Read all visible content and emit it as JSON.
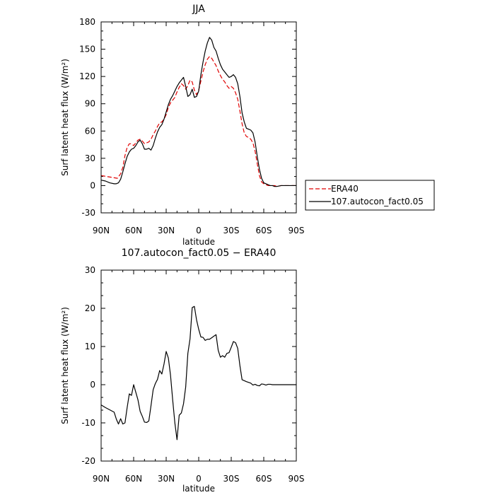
{
  "chart_data": [
    {
      "type": "line",
      "title": "JJA",
      "xlabel": "latitude",
      "ylabel": "Surf latent heat flux (W/m²)",
      "xlim": [
        -90,
        90
      ],
      "ylim": [
        -30,
        180
      ],
      "x_ticks": [
        -90,
        -60,
        -30,
        0,
        30,
        60,
        90
      ],
      "x_tick_labels": [
        "90N",
        "60N",
        "30N",
        "0",
        "30S",
        "60S",
        "90S"
      ],
      "y_ticks": [
        -30,
        0,
        30,
        60,
        90,
        120,
        150,
        180
      ],
      "y_tick_labels": [
        "-30",
        "0",
        "30",
        "60",
        "90",
        "120",
        "150",
        "180"
      ],
      "legend_position": "right, outside plot",
      "series": [
        {
          "name": "ERA40",
          "color": "#e00000",
          "dash": "dashed",
          "points": [
            [
              -90,
              11
            ],
            [
              -85,
              10
            ],
            [
              -80,
              9
            ],
            [
              -75,
              8
            ],
            [
              -72,
              13
            ],
            [
              -70,
              20
            ],
            [
              -68,
              33
            ],
            [
              -66,
              42
            ],
            [
              -64,
              46
            ],
            [
              -62,
              46
            ],
            [
              -60,
              44
            ],
            [
              -58,
              47
            ],
            [
              -56,
              50
            ],
            [
              -54,
              51
            ],
            [
              -52,
              49
            ],
            [
              -50,
              46
            ],
            [
              -48,
              47
            ],
            [
              -46,
              48
            ],
            [
              -44,
              51
            ],
            [
              -42,
              56
            ],
            [
              -40,
              60
            ],
            [
              -38,
              65
            ],
            [
              -36,
              69
            ],
            [
              -34,
              70
            ],
            [
              -32,
              73
            ],
            [
              -30,
              78
            ],
            [
              -28,
              86
            ],
            [
              -26,
              91
            ],
            [
              -24,
              94
            ],
            [
              -22,
              97
            ],
            [
              -20,
              103
            ],
            [
              -18,
              108
            ],
            [
              -16,
              112
            ],
            [
              -14,
              110
            ],
            [
              -12,
              106
            ],
            [
              -10,
              110
            ],
            [
              -8,
              116
            ],
            [
              -6,
              114
            ],
            [
              -4,
              105
            ],
            [
              -2,
              100
            ],
            [
              0,
              105
            ],
            [
              2,
              115
            ],
            [
              4,
              125
            ],
            [
              6,
              133
            ],
            [
              8,
              139
            ],
            [
              10,
              142
            ],
            [
              12,
              140
            ],
            [
              14,
              136
            ],
            [
              16,
              132
            ],
            [
              18,
              126
            ],
            [
              20,
              121
            ],
            [
              22,
              117
            ],
            [
              24,
              114
            ],
            [
              26,
              110
            ],
            [
              28,
              107
            ],
            [
              30,
              109
            ],
            [
              32,
              107
            ],
            [
              34,
              102
            ],
            [
              36,
              95
            ],
            [
              38,
              82
            ],
            [
              40,
              68
            ],
            [
              42,
              58
            ],
            [
              44,
              54
            ],
            [
              46,
              53
            ],
            [
              48,
              51
            ],
            [
              50,
              47
            ],
            [
              52,
              38
            ],
            [
              54,
              24
            ],
            [
              56,
              11
            ],
            [
              58,
              4
            ],
            [
              60,
              2
            ],
            [
              62,
              1
            ],
            [
              64,
              0
            ],
            [
              66,
              0
            ],
            [
              68,
              0
            ],
            [
              70,
              0
            ],
            [
              72,
              -1
            ],
            [
              76,
              0
            ],
            [
              80,
              0
            ],
            [
              85,
              0
            ],
            [
              90,
              0
            ]
          ]
        },
        {
          "name": "107.autocon_fact0.05",
          "color": "#000000",
          "dash": "solid",
          "points": [
            [
              -90,
              6
            ],
            [
              -86,
              5
            ],
            [
              -82,
              3
            ],
            [
              -78,
              2
            ],
            [
              -76,
              2
            ],
            [
              -74,
              3
            ],
            [
              -72,
              7
            ],
            [
              -70,
              15
            ],
            [
              -68,
              24
            ],
            [
              -66,
              32
            ],
            [
              -64,
              37
            ],
            [
              -62,
              40
            ],
            [
              -60,
              41
            ],
            [
              -58,
              44
            ],
            [
              -56,
              48
            ],
            [
              -54,
              50
            ],
            [
              -52,
              46
            ],
            [
              -50,
              40
            ],
            [
              -48,
              40
            ],
            [
              -46,
              41
            ],
            [
              -44,
              39
            ],
            [
              -42,
              44
            ],
            [
              -40,
              52
            ],
            [
              -38,
              59
            ],
            [
              -36,
              64
            ],
            [
              -34,
              67
            ],
            [
              -32,
              73
            ],
            [
              -30,
              81
            ],
            [
              -28,
              89
            ],
            [
              -26,
              95
            ],
            [
              -24,
              99
            ],
            [
              -22,
              104
            ],
            [
              -20,
              109
            ],
            [
              -18,
              113
            ],
            [
              -16,
              116
            ],
            [
              -14,
              119
            ],
            [
              -12,
              109
            ],
            [
              -10,
              98
            ],
            [
              -8,
              100
            ],
            [
              -6,
              106
            ],
            [
              -4,
              97
            ],
            [
              -2,
              98
            ],
            [
              0,
              104
            ],
            [
              2,
              122
            ],
            [
              4,
              136
            ],
            [
              6,
              148
            ],
            [
              8,
              157
            ],
            [
              10,
              163
            ],
            [
              12,
              160
            ],
            [
              14,
              152
            ],
            [
              16,
              148
            ],
            [
              18,
              140
            ],
            [
              20,
              133
            ],
            [
              22,
              128
            ],
            [
              24,
              125
            ],
            [
              26,
              122
            ],
            [
              28,
              119
            ],
            [
              30,
              120
            ],
            [
              32,
              122
            ],
            [
              34,
              119
            ],
            [
              36,
              112
            ],
            [
              38,
              98
            ],
            [
              40,
              80
            ],
            [
              42,
              70
            ],
            [
              44,
              63
            ],
            [
              46,
              62
            ],
            [
              48,
              61
            ],
            [
              50,
              58
            ],
            [
              52,
              48
            ],
            [
              54,
              32
            ],
            [
              56,
              18
            ],
            [
              58,
              8
            ],
            [
              60,
              3
            ],
            [
              62,
              2
            ],
            [
              64,
              1
            ],
            [
              66,
              0
            ],
            [
              68,
              0
            ],
            [
              70,
              -1
            ],
            [
              72,
              -1
            ],
            [
              76,
              0
            ],
            [
              80,
              0
            ],
            [
              85,
              0
            ],
            [
              90,
              0
            ]
          ]
        }
      ]
    },
    {
      "type": "line",
      "title": "107.autocon_fact0.05 − ERA40",
      "xlabel": "latitude",
      "ylabel": "Surf latent heat flux (W/m²)",
      "xlim": [
        -90,
        90
      ],
      "ylim": [
        -20,
        30
      ],
      "x_ticks": [
        -90,
        -60,
        -30,
        0,
        30,
        60,
        90
      ],
      "x_tick_labels": [
        "90N",
        "60N",
        "30N",
        "0",
        "30S",
        "60S",
        "90S"
      ],
      "y_ticks": [
        -20,
        -10,
        0,
        10,
        20,
        30
      ],
      "y_tick_labels": [
        "-20",
        "-10",
        "0",
        "10",
        "20",
        "30"
      ],
      "series": [
        {
          "color": "#000000",
          "dash": "solid",
          "points": [
            [
              -90,
              -5.3
            ],
            [
              -86,
              -6
            ],
            [
              -82,
              -6.6
            ],
            [
              -80,
              -6.9
            ],
            [
              -78,
              -7.2
            ],
            [
              -76,
              -9
            ],
            [
              -74,
              -10.3
            ],
            [
              -72,
              -8.9
            ],
            [
              -70,
              -10.3
            ],
            [
              -68,
              -10
            ],
            [
              -66,
              -6
            ],
            [
              -64,
              -2.4
            ],
            [
              -62,
              -2.8
            ],
            [
              -60,
              0
            ],
            [
              -58,
              -2
            ],
            [
              -56,
              -4
            ],
            [
              -54,
              -7
            ],
            [
              -52,
              -8.3
            ],
            [
              -50,
              -9.8
            ],
            [
              -48,
              -9.9
            ],
            [
              -46,
              -9.5
            ],
            [
              -44,
              -5.5
            ],
            [
              -42,
              -1.3
            ],
            [
              -40,
              0.3
            ],
            [
              -38,
              1.4
            ],
            [
              -36,
              3.7
            ],
            [
              -34,
              2.8
            ],
            [
              -32,
              5.4
            ],
            [
              -30,
              8.7
            ],
            [
              -28,
              7
            ],
            [
              -26,
              2.5
            ],
            [
              -24,
              -4
            ],
            [
              -22,
              -10
            ],
            [
              -20,
              -14.4
            ],
            [
              -18,
              -8
            ],
            [
              -16,
              -7.4
            ],
            [
              -14,
              -5
            ],
            [
              -12,
              -0.6
            ],
            [
              -10,
              8.2
            ],
            [
              -8,
              12
            ],
            [
              -6,
              20.2
            ],
            [
              -4,
              20.5
            ],
            [
              -2,
              17
            ],
            [
              0,
              14.5
            ],
            [
              2,
              12.5
            ],
            [
              4,
              12.4
            ],
            [
              6,
              11.6
            ],
            [
              8,
              11.9
            ],
            [
              10,
              11.9
            ],
            [
              12,
              12.3
            ],
            [
              14,
              12.7
            ],
            [
              16,
              13.1
            ],
            [
              18,
              9
            ],
            [
              20,
              7.2
            ],
            [
              22,
              7.6
            ],
            [
              24,
              7.2
            ],
            [
              26,
              8.2
            ],
            [
              28,
              8.4
            ],
            [
              30,
              9.8
            ],
            [
              32,
              11.3
            ],
            [
              34,
              11
            ],
            [
              36,
              9.5
            ],
            [
              38,
              5
            ],
            [
              40,
              1.3
            ],
            [
              44,
              0.8
            ],
            [
              48,
              0.4
            ],
            [
              50,
              -0.1
            ],
            [
              52,
              0.1
            ],
            [
              54,
              -0.2
            ],
            [
              56,
              -0.3
            ],
            [
              58,
              0.2
            ],
            [
              60,
              0.1
            ],
            [
              62,
              -0.1
            ],
            [
              64,
              0.1
            ],
            [
              66,
              0.1
            ],
            [
              68,
              0
            ],
            [
              70,
              0
            ],
            [
              72,
              0
            ],
            [
              74,
              0
            ],
            [
              76,
              0
            ],
            [
              78,
              0
            ],
            [
              80,
              0
            ],
            [
              82,
              0
            ],
            [
              84,
              0
            ],
            [
              86,
              0
            ],
            [
              88,
              0
            ],
            [
              90,
              0
            ]
          ]
        }
      ]
    }
  ]
}
